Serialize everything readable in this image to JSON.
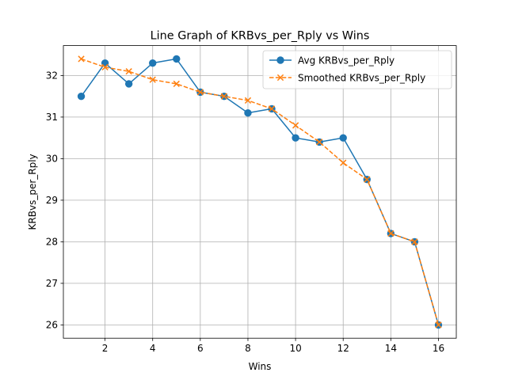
{
  "chart_data": {
    "type": "line",
    "title": "Line Graph of KRBvs_per_Rply vs Wins",
    "xlabel": "Wins",
    "ylabel": "KRBvs_per_Rply",
    "xlim": [
      0.25,
      16.75
    ],
    "ylim": [
      25.68,
      32.72
    ],
    "xticks": [
      2,
      4,
      6,
      8,
      10,
      12,
      14,
      16
    ],
    "yticks": [
      26,
      27,
      28,
      29,
      30,
      31,
      32
    ],
    "grid": true,
    "legend_position": "top-right",
    "x": [
      1,
      2,
      3,
      4,
      5,
      6,
      7,
      8,
      9,
      10,
      11,
      12,
      13,
      14,
      15,
      16
    ],
    "series": [
      {
        "name": "Avg KRBvs_per_Rply",
        "color": "#1f77b4",
        "marker": "circle",
        "line_style": "solid",
        "values": [
          31.5,
          32.3,
          31.8,
          32.3,
          32.4,
          31.6,
          31.5,
          31.1,
          31.2,
          30.5,
          30.4,
          30.5,
          29.5,
          28.2,
          28.0,
          26.0
        ]
      },
      {
        "name": "Smoothed KRBvs_per_Rply",
        "color": "#ff7f0e",
        "marker": "x",
        "line_style": "dashed",
        "values": [
          32.4,
          32.2,
          32.1,
          31.9,
          31.8,
          31.6,
          31.5,
          31.4,
          31.2,
          30.8,
          30.4,
          29.9,
          29.5,
          28.2,
          28.0,
          26.0
        ]
      }
    ]
  }
}
